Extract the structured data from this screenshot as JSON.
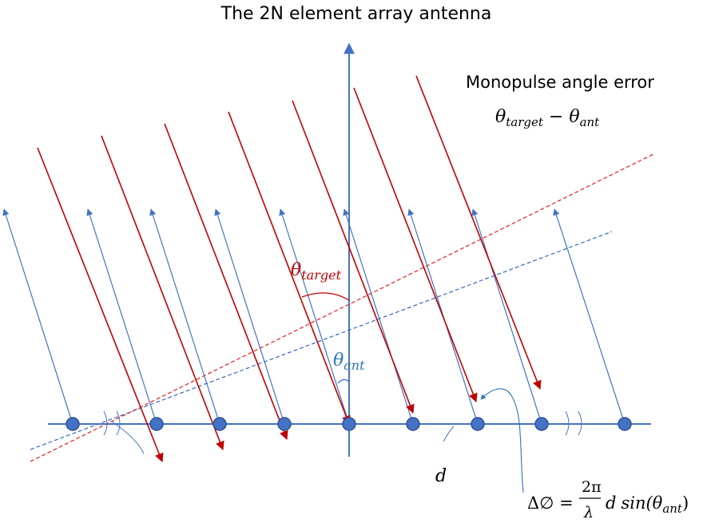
{
  "title": "The 2N element array antenna",
  "monopulse": {
    "label": "Monopulse angle error",
    "formula_theta": "θ",
    "formula_target_sub": "target",
    "formula_minus": " − θ",
    "formula_ant_sub": "ant"
  },
  "labels": {
    "theta": "θ",
    "target_sub": "target",
    "ant_sub": "ant",
    "d": "d",
    "delta_lhs": "Δ∅ =",
    "two_pi": "2π",
    "lambda": "λ",
    "delta_rhs_d": "d",
    "delta_rhs_sin": "sin(θ",
    "delta_rhs_close": ")"
  },
  "colors": {
    "blue": "#4472c4",
    "light_blue": "#5b9bd5",
    "red": "#c00000",
    "dark_red": "#c00000",
    "element_fill": "#4472c4",
    "element_stroke": "#2f528f",
    "black": "#000000",
    "theta_target_color": "#c00000",
    "theta_ant_color": "#2e75b6"
  }
}
